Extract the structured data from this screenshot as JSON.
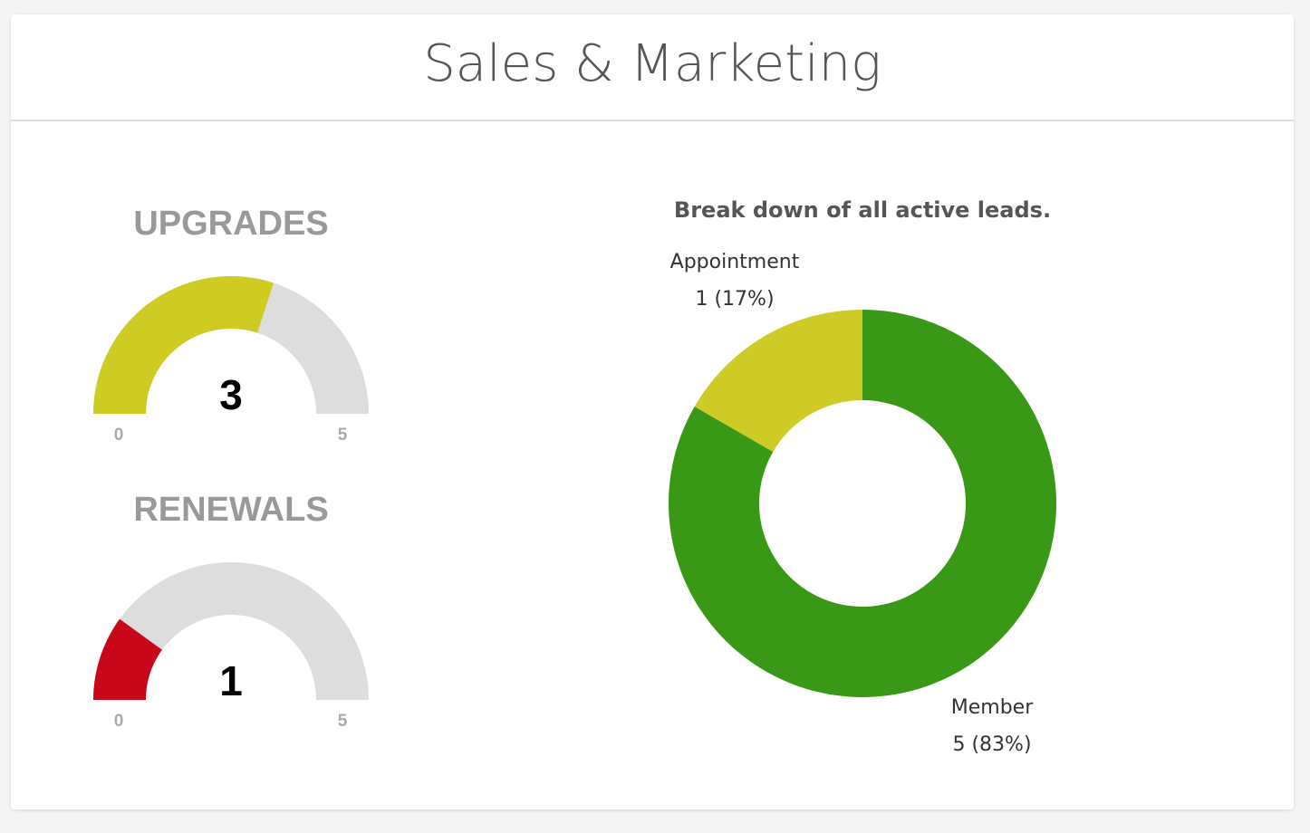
{
  "header": {
    "title": "Sales & Marketing"
  },
  "gauges": [
    {
      "title": "UPGRADES",
      "value": 3,
      "value_label": "3",
      "min": 0,
      "max": 5,
      "min_label": "0",
      "max_label": "5",
      "fill_color": "#cecb23",
      "track_color": "#dddddd"
    },
    {
      "title": "RENEWALS",
      "value": 1,
      "value_label": "1",
      "min": 0,
      "max": 5,
      "min_label": "0",
      "max_label": "5",
      "fill_color": "#c8081a",
      "track_color": "#dddddd"
    }
  ],
  "chart_data": {
    "type": "pie",
    "title": "Break down of all active leads.",
    "donut": true,
    "legend": "none",
    "slices": [
      {
        "name": "Member",
        "value": 5,
        "percent": 83,
        "label": "5 (83%)",
        "color": "#3a9817"
      },
      {
        "name": "Appointment",
        "value": 1,
        "percent": 17,
        "label": "1 (17%)",
        "color": "#cecb27"
      }
    ]
  }
}
